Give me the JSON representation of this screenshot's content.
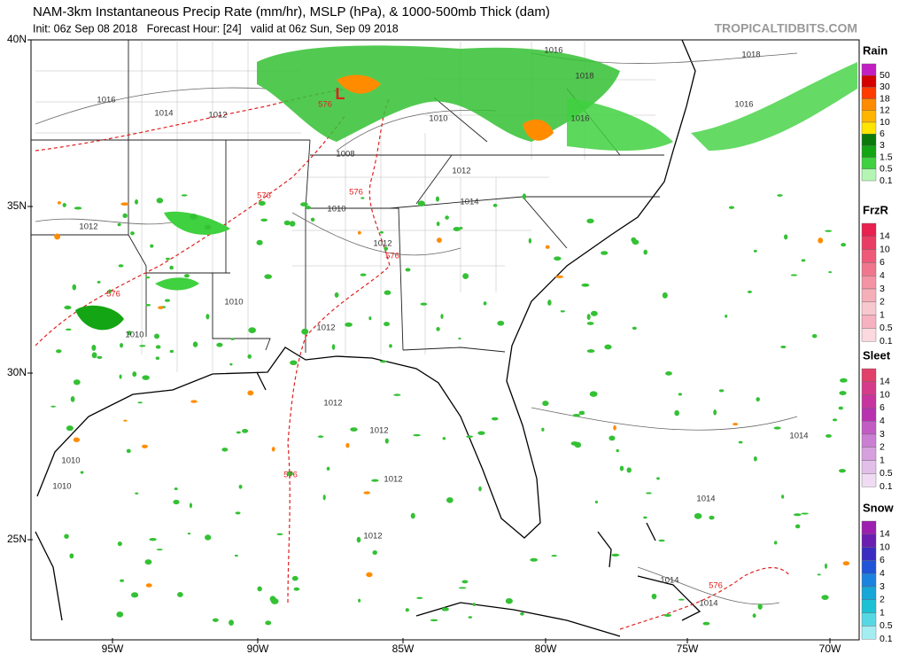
{
  "header": {
    "title": "NAM-3km Instantaneous Precip Rate (mm/hr), MSLP (hPa), & 1000-500mb Thick (dam)",
    "subtitle": "Init: 06z Sep 08 2018   Forecast Hour: [24]   valid at 06z Sun, Sep 09 2018",
    "site": "TROPICALTIDBITS.COM"
  },
  "map": {
    "lat_labels": [
      "40N",
      "35N",
      "30N",
      "25N"
    ],
    "lon_labels": [
      "95W",
      "90W",
      "85W",
      "80W",
      "75W",
      "70W"
    ],
    "low_label": "L",
    "isobar_labels": [
      "1016",
      "1014",
      "1012",
      "1016",
      "1018",
      "1018",
      "1010",
      "1016",
      "1016",
      "1008",
      "1012",
      "1014",
      "1010",
      "1012",
      "1012",
      "1010",
      "1010",
      "1012",
      "1012",
      "1012",
      "1012",
      "1012",
      "1010",
      "1010",
      "1014",
      "1014",
      "1014",
      "1014"
    ],
    "thickness_labels": [
      "576",
      "576",
      "576",
      "576",
      "576",
      "576",
      "576"
    ]
  },
  "legend": [
    {
      "title": "Rain",
      "levels": [
        "50",
        "30",
        "18",
        "12",
        "10",
        "6",
        "3",
        "1.5",
        "0.5",
        "0.1"
      ],
      "colors": [
        "#c21fc2",
        "#d40000",
        "#ff3b00",
        "#ff8c00",
        "#ffb400",
        "#ffe400",
        "#0b7a0b",
        "#13a513",
        "#3fd13f",
        "#b4f5b4"
      ]
    },
    {
      "title": "FrzR",
      "levels": [
        "14",
        "10",
        "6",
        "4",
        "3",
        "2",
        "1",
        "0.5",
        "0.1"
      ],
      "colors": [
        "#e8214f",
        "#ea3d63",
        "#ee5a78",
        "#f0768d",
        "#f393a3",
        "#f5afb9",
        "#f8c8cf",
        "#f6b2c0",
        "#fbd9df"
      ]
    },
    {
      "title": "Sleet",
      "levels": [
        "14",
        "10",
        "6",
        "4",
        "3",
        "2",
        "1",
        "0.5",
        "0.1"
      ],
      "colors": [
        "#e0406a",
        "#d63a8a",
        "#c8349f",
        "#b832b0",
        "#c25cc4",
        "#cb7fd2",
        "#d6a0de",
        "#e2bfe8",
        "#efdcf2"
      ]
    },
    {
      "title": "Snow",
      "levels": [
        "14",
        "10",
        "6",
        "4",
        "3",
        "2",
        "1",
        "0.5",
        "0.1"
      ],
      "colors": [
        "#9c1fb0",
        "#6a1fb0",
        "#3a2cc0",
        "#2054d8",
        "#1c82e0",
        "#16a6d8",
        "#1cc2d4",
        "#56d8e4",
        "#a4eef2"
      ]
    }
  ]
}
